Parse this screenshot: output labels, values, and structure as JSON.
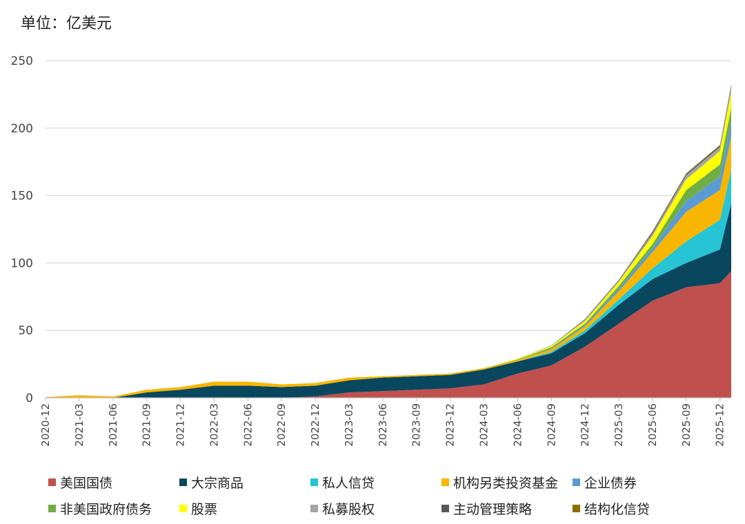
{
  "unit_label": "单位：亿美元",
  "chart_data": {
    "type": "area",
    "stacked": true,
    "ylim": [
      0,
      250
    ],
    "y_ticks": [
      0,
      50,
      100,
      150,
      200,
      250
    ],
    "grid": true,
    "legend_position": "bottom",
    "x_tick_labels": [
      "2020-12",
      "2021-03",
      "2021-06",
      "2021-09",
      "2021-12",
      "2022-03",
      "2022-06",
      "2022-09",
      "2022-12",
      "2023-03",
      "2023-06",
      "2023-09",
      "2023-12",
      "2024-03",
      "2024-06",
      "2024-09",
      "2024-12",
      "2025-03",
      "2025-06",
      "2025-09",
      "2025-12"
    ],
    "x": [
      "2020-12",
      "2021-03",
      "2021-06",
      "2021-09",
      "2021-12",
      "2022-03",
      "2022-06",
      "2022-09",
      "2022-12",
      "2023-03",
      "2023-06",
      "2023-09",
      "2023-12",
      "2024-03",
      "2024-06",
      "2024-09",
      "2024-12",
      "2025-03",
      "2025-06",
      "2025-09",
      "2025-12",
      "2026-01"
    ],
    "series": [
      {
        "name": "美国国债",
        "color": "#c0504d",
        "values": [
          0,
          0,
          0,
          0,
          0,
          0,
          0,
          0,
          1,
          4,
          5,
          6,
          7,
          10,
          18,
          24,
          38,
          55,
          72,
          82,
          85,
          94
        ]
      },
      {
        "name": "大宗商品",
        "color": "#08475e",
        "values": [
          0,
          0,
          0,
          4,
          6,
          9,
          9,
          8,
          8,
          9,
          10,
          10,
          10,
          11,
          9,
          9,
          10,
          14,
          16,
          18,
          25,
          50
        ]
      },
      {
        "name": "私人信贷",
        "color": "#26c4d4",
        "values": [
          0,
          0,
          0,
          0,
          0,
          0,
          0,
          0,
          0,
          0,
          0,
          0,
          0,
          0,
          0,
          1,
          2,
          4,
          8,
          16,
          22,
          25
        ]
      },
      {
        "name": "机构另类投资基金",
        "color": "#f8b600",
        "values": [
          0.5,
          2,
          1,
          2,
          2,
          3,
          3,
          2,
          2,
          2,
          1,
          1,
          1,
          1,
          1,
          2,
          3,
          6,
          12,
          22,
          22,
          25
        ]
      },
      {
        "name": "企业债券",
        "color": "#5b9bd5",
        "values": [
          0,
          0,
          0,
          0,
          0,
          0,
          0,
          0,
          0,
          0,
          0,
          0,
          0,
          0,
          0,
          0.5,
          1,
          2,
          3,
          8,
          10,
          11
        ]
      },
      {
        "name": "非美国政府债务",
        "color": "#70ad47",
        "values": [
          0,
          0,
          0,
          0,
          0,
          0,
          0,
          0,
          0,
          0,
          0,
          0,
          0,
          0,
          0.5,
          1,
          1,
          2,
          3,
          8,
          9,
          10
        ]
      },
      {
        "name": "股票",
        "color": "#ffff00",
        "values": [
          0,
          0,
          0,
          0,
          0,
          0,
          0,
          0,
          0,
          0,
          0,
          0,
          0,
          0,
          0.5,
          1,
          2,
          3,
          6,
          8,
          10,
          12
        ]
      },
      {
        "name": "私募股权",
        "color": "#a5a5a5",
        "values": [
          0,
          0,
          0,
          0,
          0,
          0,
          0,
          0,
          0,
          0,
          0,
          0,
          0,
          0,
          0,
          0.5,
          1,
          1,
          2,
          3,
          3,
          4
        ]
      },
      {
        "name": "主动管理策略",
        "color": "#595959",
        "values": [
          0,
          0,
          0,
          0,
          0,
          0,
          0,
          0,
          0,
          0,
          0,
          0,
          0,
          0,
          0,
          0,
          0.5,
          0.5,
          1,
          1,
          1,
          1
        ]
      },
      {
        "name": "结构化信贷",
        "color": "#8b6f00",
        "values": [
          0,
          0,
          0,
          0,
          0,
          0,
          0,
          0,
          0,
          0,
          0,
          0,
          0,
          0,
          0,
          0,
          0,
          0,
          0.5,
          0.5,
          0.5,
          0.5
        ]
      }
    ]
  }
}
